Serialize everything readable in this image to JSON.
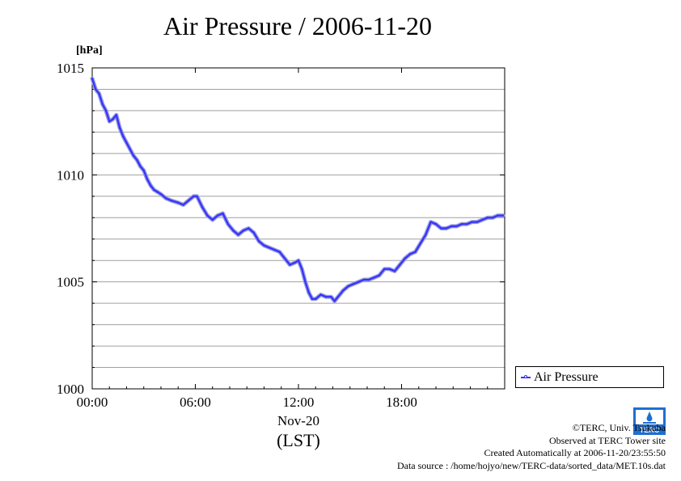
{
  "title": "Air Pressure / 2006-11-20",
  "unit_label": "[hPa]",
  "legend": {
    "label": "Air Pressure"
  },
  "logo": {
    "text": "TERC"
  },
  "credits": {
    "line1": "©TERC, Univ. Tsukuba",
    "line2": "Observed at TERC Tower site",
    "line3": "Created Automatically at 2006-11-20/23:55:50",
    "line4": "Data source : /home/hojyo/new/TERC-data/sorted_data/MET.10s.dat"
  },
  "colors": {
    "series": "#3333ff",
    "series_halo": "#9999dd",
    "grid": "#a0a0a0"
  },
  "chart_data": {
    "type": "line",
    "title": "Air Pressure / 2006-11-20",
    "xlabel": "Nov-20",
    "xlabel2": "(LST)",
    "ylabel": "[hPa]",
    "xlim": [
      0,
      24
    ],
    "ylim": [
      1000,
      1015
    ],
    "x_ticks": [
      0,
      6,
      12,
      18
    ],
    "x_tick_labels": [
      "00:00",
      "06:00",
      "12:00",
      "18:00"
    ],
    "y_ticks": [
      1000,
      1005,
      1010,
      1015
    ],
    "y_tick_labels": [
      "1000",
      "1005",
      "1010",
      "1015"
    ],
    "grid": true,
    "legend_position": "right-bottom",
    "series": [
      {
        "name": "Air Pressure",
        "x": [
          0.0,
          0.2,
          0.4,
          0.6,
          0.8,
          1.0,
          1.2,
          1.4,
          1.6,
          1.8,
          2.0,
          2.2,
          2.4,
          2.6,
          2.8,
          3.0,
          3.2,
          3.4,
          3.6,
          3.8,
          4.0,
          4.3,
          4.6,
          5.0,
          5.3,
          5.6,
          5.9,
          6.1,
          6.4,
          6.7,
          7.0,
          7.3,
          7.6,
          7.9,
          8.2,
          8.5,
          8.8,
          9.1,
          9.4,
          9.7,
          10.0,
          10.3,
          10.6,
          10.9,
          11.2,
          11.5,
          11.8,
          12.0,
          12.2,
          12.4,
          12.6,
          12.8,
          13.0,
          13.3,
          13.6,
          13.9,
          14.1,
          14.3,
          14.6,
          14.9,
          15.2,
          15.5,
          15.8,
          16.1,
          16.4,
          16.7,
          17.0,
          17.3,
          17.6,
          17.9,
          18.2,
          18.5,
          18.8,
          19.1,
          19.4,
          19.7,
          20.0,
          20.3,
          20.6,
          20.9,
          21.2,
          21.5,
          21.8,
          22.1,
          22.4,
          22.7,
          23.0,
          23.3,
          23.6,
          23.9
        ],
        "y": [
          1014.5,
          1014.0,
          1013.8,
          1013.3,
          1013.0,
          1012.5,
          1012.6,
          1012.8,
          1012.2,
          1011.8,
          1011.5,
          1011.2,
          1010.9,
          1010.7,
          1010.4,
          1010.2,
          1009.8,
          1009.5,
          1009.3,
          1009.2,
          1009.1,
          1008.9,
          1008.8,
          1008.7,
          1008.6,
          1008.8,
          1009.0,
          1009.0,
          1008.5,
          1008.1,
          1007.9,
          1008.1,
          1008.2,
          1007.7,
          1007.4,
          1007.2,
          1007.4,
          1007.5,
          1007.3,
          1006.9,
          1006.7,
          1006.6,
          1006.5,
          1006.4,
          1006.1,
          1005.8,
          1005.9,
          1006.0,
          1005.6,
          1005.0,
          1004.5,
          1004.2,
          1004.2,
          1004.4,
          1004.3,
          1004.3,
          1004.1,
          1004.3,
          1004.6,
          1004.8,
          1004.9,
          1005.0,
          1005.1,
          1005.1,
          1005.2,
          1005.3,
          1005.6,
          1005.6,
          1005.5,
          1005.8,
          1006.1,
          1006.3,
          1006.4,
          1006.8,
          1007.2,
          1007.8,
          1007.7,
          1007.5,
          1007.5,
          1007.6,
          1007.6,
          1007.7,
          1007.7,
          1007.8,
          1007.8,
          1007.9,
          1008.0,
          1008.0,
          1008.1,
          1008.1
        ]
      }
    ]
  }
}
